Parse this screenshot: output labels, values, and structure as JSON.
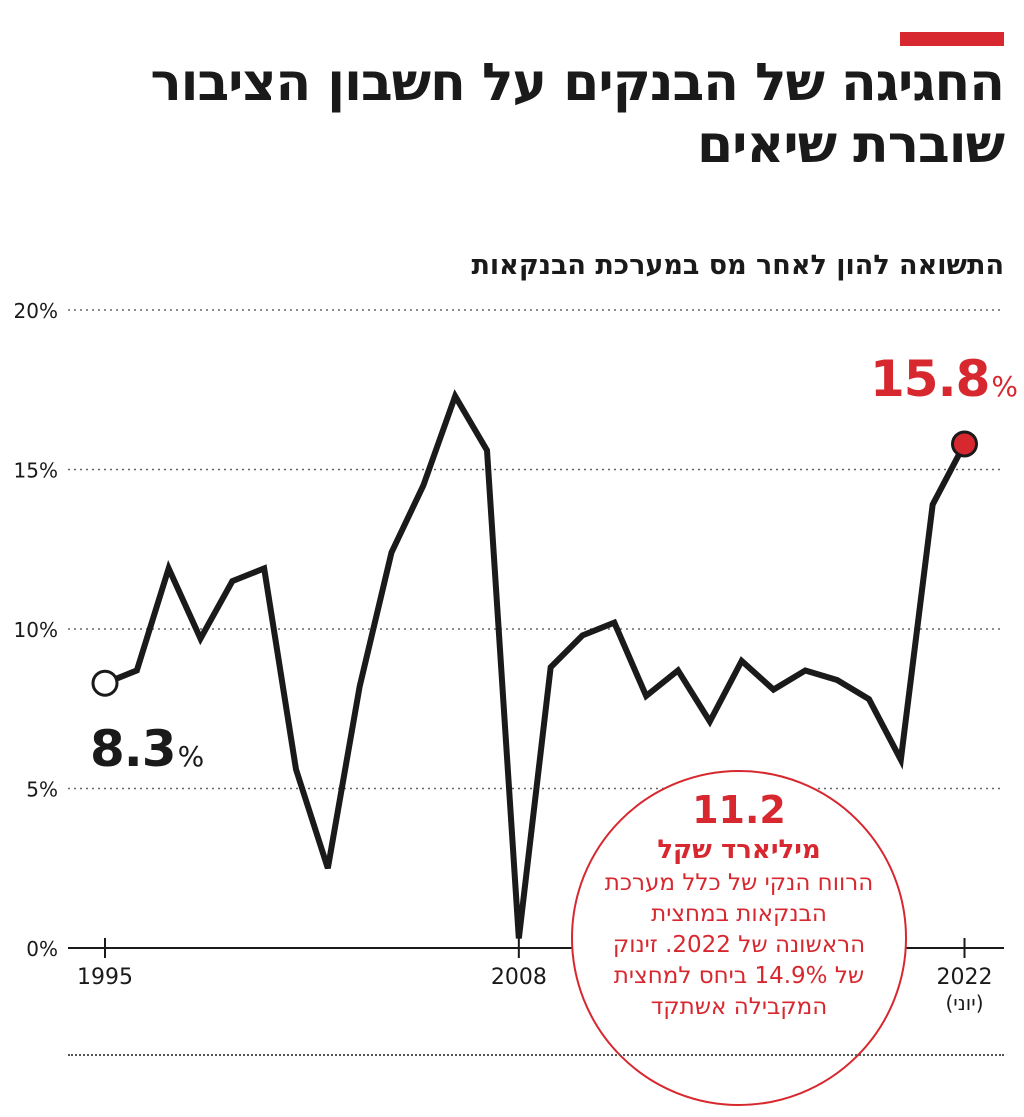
{
  "header": {
    "title": "החגיגה של הבנקים על חשבון הציבור שוברת שיאים",
    "subtitle": "התשואה להון לאחר מס במערכת הבנקאות",
    "accent_color": "#d7282f"
  },
  "chart_data": {
    "type": "line",
    "title": "החגיגה של הבנקים על חשבון הציבור שוברת שיאים",
    "subtitle": "התשואה להון לאחר מס במערכת הבנקאות",
    "xlabel": "",
    "ylabel": "",
    "ylim": [
      0,
      20
    ],
    "xlim": [
      1995,
      2022.5
    ],
    "grid": true,
    "y_ticks": [
      "0%",
      "5%",
      "10%",
      "15%",
      "20%"
    ],
    "x_ticks": [
      {
        "value": 1995,
        "label": "1995",
        "sub": ""
      },
      {
        "value": 2008,
        "label": "2008",
        "sub": ""
      },
      {
        "value": 2022,
        "label": "2022",
        "sub": "(יוני)"
      }
    ],
    "line_color": "#1a1a1a",
    "highlight_color": "#d7282f",
    "x": [
      1995,
      1996,
      1997,
      1998,
      1999,
      2000,
      2001,
      2002,
      2003,
      2004,
      2005,
      2006,
      2007,
      2008,
      2009,
      2010,
      2011,
      2012,
      2013,
      2014,
      2015,
      2016,
      2017,
      2018,
      2019,
      2020,
      2021,
      2022
    ],
    "values": [
      8.3,
      8.7,
      11.9,
      9.7,
      11.5,
      11.9,
      5.6,
      2.5,
      8.2,
      12.4,
      14.5,
      17.3,
      15.6,
      0.3,
      8.8,
      9.8,
      10.2,
      7.9,
      8.7,
      7.1,
      9.0,
      8.1,
      8.7,
      8.4,
      7.8,
      5.9,
      13.9,
      15.8
    ],
    "annotations": {
      "start_value": "8.3",
      "end_value": "15.8",
      "percent_sign": "%"
    }
  },
  "callout": {
    "value": "11.2",
    "unit": "מיליארד שקל",
    "text": "הרווח הנקי של כלל מערכת הבנקאות במחצית הראשונה של 2022. זינוק של 14.9% ביחס למחצית המקבילה אשתקד"
  }
}
